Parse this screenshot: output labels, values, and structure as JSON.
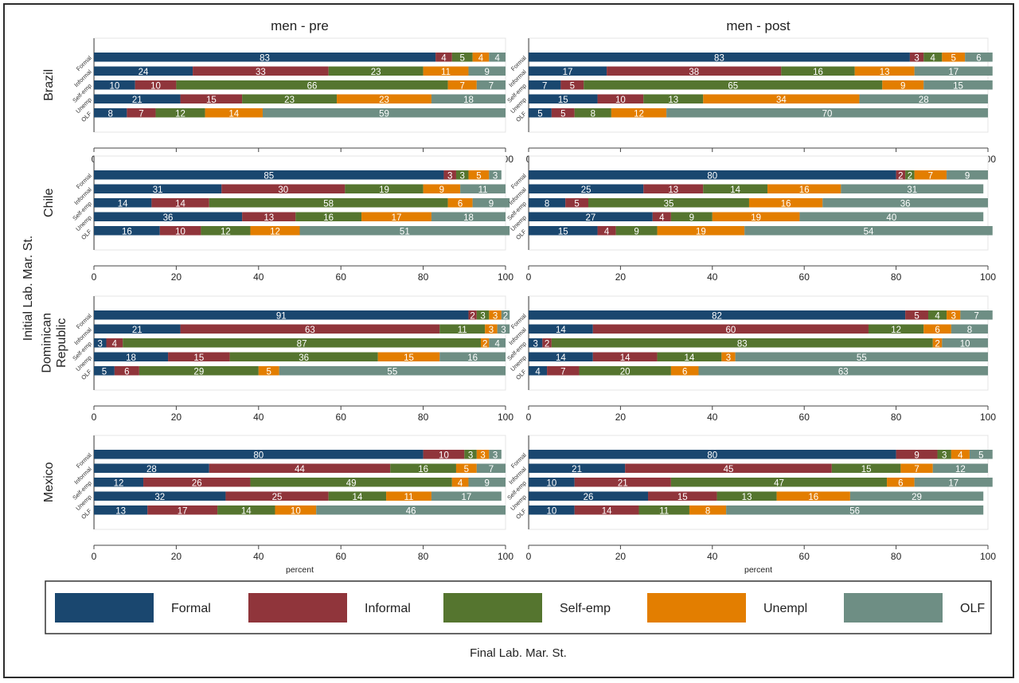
{
  "colors": {
    "Formal": "#1a476f",
    "Informal": "#90353b",
    "Self-emp": "#55752f",
    "Unempl": "#e37e00",
    "OLF": "#6e8e84"
  },
  "chart_data": {
    "type": "bar",
    "orientation": "horizontal",
    "stacked": true,
    "columns": [
      "men - pre",
      "men - post"
    ],
    "countries": [
      "Brazil",
      "Chile",
      "Dominican Republic",
      "Mexico"
    ],
    "categories": [
      "Formal",
      "Informal",
      "Self-emp",
      "Unemp",
      "OLF"
    ],
    "series_names": [
      "Formal",
      "Informal",
      "Self-emp",
      "Unempl",
      "OLF"
    ],
    "xlabel": "percent",
    "ylabel": "Initial Lab. Mar. St.",
    "legend_title": "Final Lab. Mar. St.",
    "legend_position": "bottom",
    "xlim": [
      0,
      100
    ],
    "xticks": [
      0,
      20,
      40,
      60,
      80,
      100
    ],
    "panels": [
      {
        "country": "Brazil",
        "column": "men - pre",
        "rows": [
          [
            83,
            4,
            5,
            4,
            4
          ],
          [
            24,
            33,
            23,
            11,
            9
          ],
          [
            10,
            10,
            66,
            7,
            7
          ],
          [
            21,
            15,
            23,
            23,
            18
          ],
          [
            8,
            7,
            12,
            14,
            59
          ]
        ]
      },
      {
        "country": "Brazil",
        "column": "men - post",
        "rows": [
          [
            83,
            3,
            4,
            5,
            6
          ],
          [
            17,
            38,
            16,
            13,
            17
          ],
          [
            7,
            5,
            65,
            9,
            15
          ],
          [
            15,
            10,
            13,
            34,
            28
          ],
          [
            5,
            5,
            8,
            12,
            70
          ]
        ]
      },
      {
        "country": "Chile",
        "column": "men - pre",
        "rows": [
          [
            85,
            3,
            3,
            5,
            3
          ],
          [
            31,
            30,
            19,
            9,
            11
          ],
          [
            14,
            14,
            58,
            6,
            9
          ],
          [
            36,
            13,
            16,
            17,
            18
          ],
          [
            16,
            10,
            12,
            12,
            51
          ]
        ]
      },
      {
        "country": "Chile",
        "column": "men - post",
        "rows": [
          [
            80,
            2,
            2,
            7,
            9
          ],
          [
            25,
            13,
            14,
            16,
            31
          ],
          [
            8,
            5,
            35,
            16,
            36
          ],
          [
            27,
            4,
            9,
            19,
            40
          ],
          [
            15,
            4,
            9,
            19,
            54
          ]
        ]
      },
      {
        "country": "Dominican Republic",
        "column": "men - pre",
        "rows": [
          [
            91,
            2,
            3,
            3,
            2
          ],
          [
            21,
            63,
            11,
            3,
            3
          ],
          [
            3,
            4,
            87,
            2,
            4
          ],
          [
            18,
            15,
            36,
            15,
            16
          ],
          [
            5,
            6,
            29,
            5,
            55
          ]
        ]
      },
      {
        "country": "Dominican Republic",
        "column": "men - post",
        "rows": [
          [
            82,
            5,
            4,
            3,
            7
          ],
          [
            14,
            60,
            12,
            6,
            8
          ],
          [
            3,
            2,
            83,
            2,
            10
          ],
          [
            14,
            14,
            14,
            3,
            55
          ],
          [
            4,
            7,
            20,
            6,
            63
          ]
        ]
      },
      {
        "country": "Mexico",
        "column": "men - pre",
        "rows": [
          [
            80,
            10,
            3,
            3,
            3
          ],
          [
            28,
            44,
            16,
            5,
            7
          ],
          [
            12,
            26,
            49,
            4,
            9
          ],
          [
            32,
            25,
            14,
            11,
            17
          ],
          [
            13,
            17,
            14,
            10,
            46
          ]
        ]
      },
      {
        "country": "Mexico",
        "column": "men - post",
        "rows": [
          [
            80,
            9,
            3,
            4,
            5
          ],
          [
            21,
            45,
            15,
            7,
            12
          ],
          [
            10,
            21,
            47,
            6,
            17
          ],
          [
            26,
            15,
            13,
            16,
            29
          ],
          [
            10,
            14,
            11,
            8,
            56
          ]
        ]
      }
    ]
  }
}
